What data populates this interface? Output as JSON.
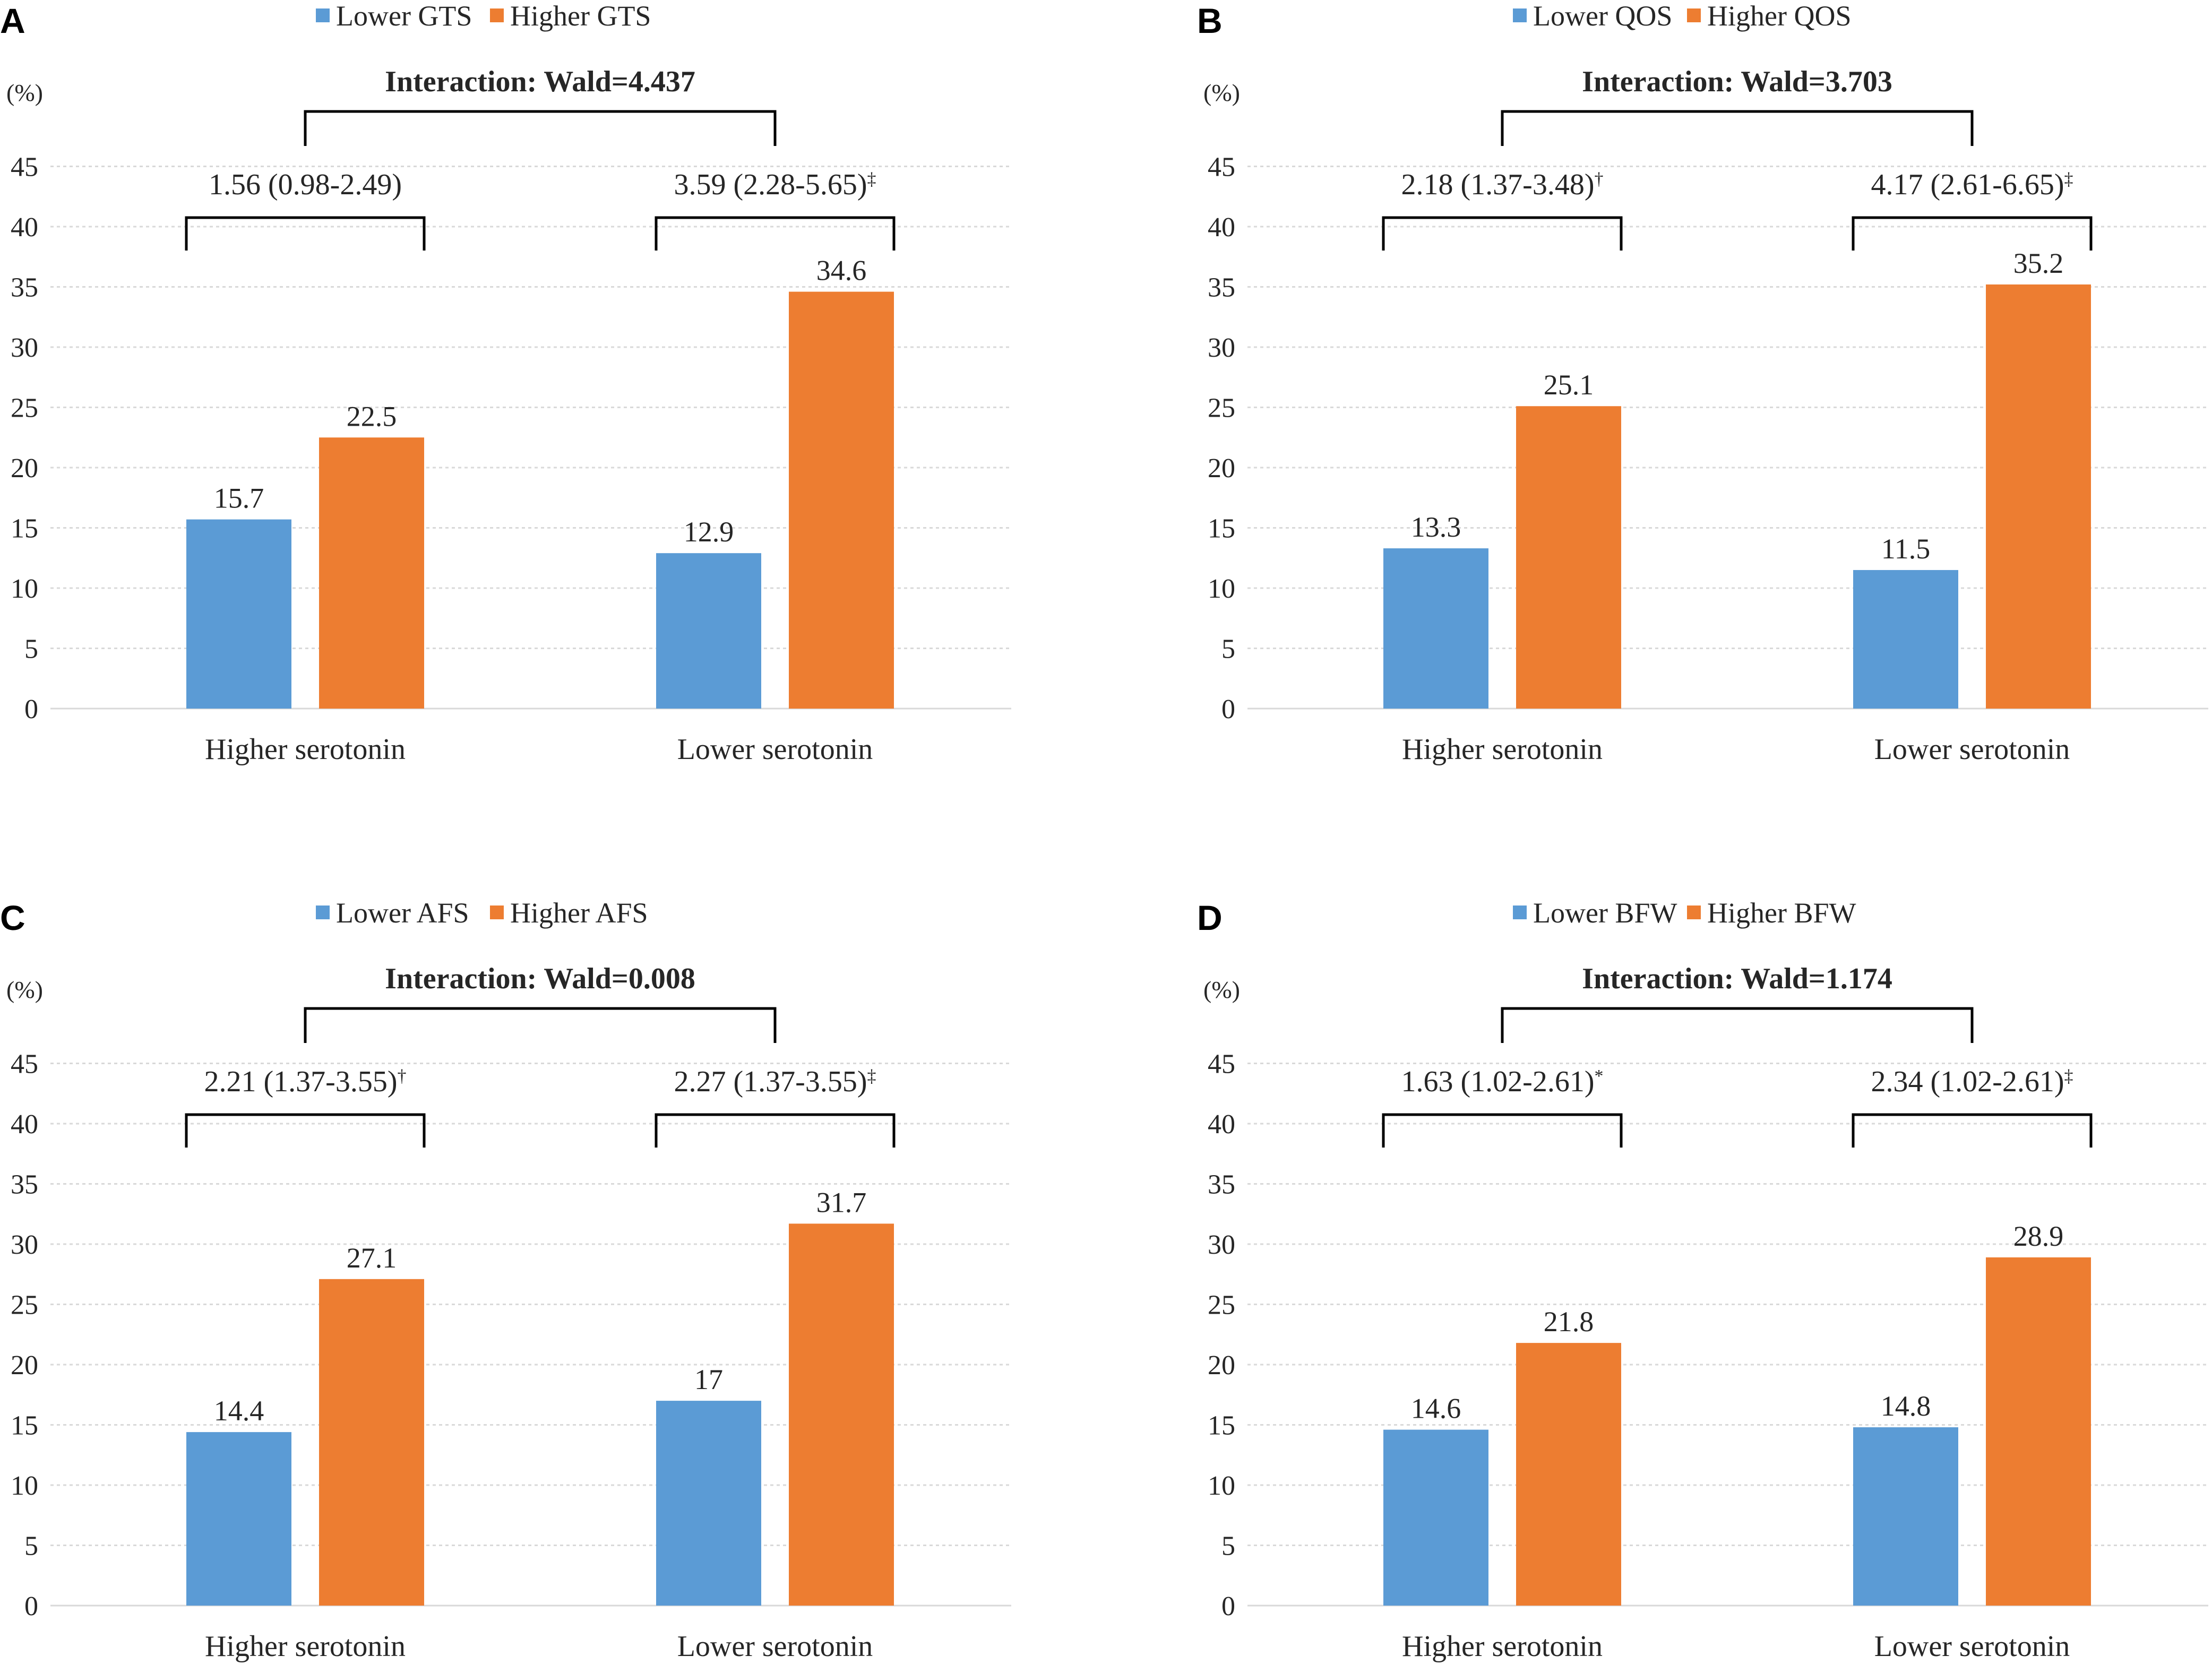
{
  "colors": {
    "lower": "#5B9BD5",
    "higher": "#ED7D31",
    "grid": "#D9D9D9",
    "bracket": "#000000"
  },
  "y_unit": "(%)",
  "chart_data": [
    {
      "panel": "A",
      "type": "bar",
      "categories": [
        "Higher serotonin",
        "Lower serotonin"
      ],
      "series": [
        {
          "name": "Lower GTS",
          "values": [
            15.7,
            12.9
          ]
        },
        {
          "name": "Higher GTS",
          "values": [
            22.5,
            34.6
          ]
        }
      ],
      "value_labels": [
        [
          "15.7",
          "12.9"
        ],
        [
          "22.5",
          "34.6"
        ]
      ],
      "yticks": [
        "0",
        "5",
        "10",
        "15",
        "20",
        "25",
        "30",
        "35",
        "40",
        "45"
      ],
      "ylim": [
        0,
        45
      ],
      "odds_ratios": [
        "1.56 (0.98-2.49)",
        "3.59 (2.28-5.65)"
      ],
      "or_marks": [
        "",
        "‡"
      ],
      "interaction": "Interaction:  Wald=4.437"
    },
    {
      "panel": "B",
      "type": "bar",
      "categories": [
        "Higher serotonin",
        "Lower serotonin"
      ],
      "series": [
        {
          "name": "Lower QOS",
          "values": [
            13.3,
            11.5
          ]
        },
        {
          "name": "Higher QOS",
          "values": [
            25.1,
            35.2
          ]
        }
      ],
      "value_labels": [
        [
          "13.3",
          "11.5"
        ],
        [
          "25.1",
          "35.2"
        ]
      ],
      "yticks": [
        "0",
        "5",
        "10",
        "15",
        "20",
        "25",
        "30",
        "35",
        "40",
        "45"
      ],
      "ylim": [
        0,
        45
      ],
      "odds_ratios": [
        "2.18 (1.37-3.48)",
        "4.17 (2.61-6.65)"
      ],
      "or_marks": [
        "†",
        "‡"
      ],
      "interaction": "Interaction:  Wald=3.703"
    },
    {
      "panel": "C",
      "type": "bar",
      "categories": [
        "Higher serotonin",
        "Lower serotonin"
      ],
      "series": [
        {
          "name": "Lower AFS",
          "values": [
            14.4,
            17
          ]
        },
        {
          "name": "Higher AFS",
          "values": [
            27.1,
            31.7
          ]
        }
      ],
      "value_labels": [
        [
          "14.4",
          "17"
        ],
        [
          "27.1",
          "31.7"
        ]
      ],
      "yticks": [
        "0",
        "5",
        "10",
        "15",
        "20",
        "25",
        "30",
        "35",
        "40",
        "45"
      ],
      "ylim": [
        0,
        45
      ],
      "odds_ratios": [
        "2.21 (1.37-3.55)",
        "2.27 (1.37-3.55)"
      ],
      "or_marks": [
        "†",
        "‡"
      ],
      "interaction": "Interaction:  Wald=0.008"
    },
    {
      "panel": "D",
      "type": "bar",
      "categories": [
        "Higher serotonin",
        "Lower serotonin"
      ],
      "series": [
        {
          "name": "Lower BFW",
          "values": [
            14.6,
            14.8
          ]
        },
        {
          "name": "Higher BFW",
          "values": [
            21.8,
            28.9
          ]
        }
      ],
      "value_labels": [
        [
          "14.6",
          "14.8"
        ],
        [
          "21.8",
          "28.9"
        ]
      ],
      "yticks": [
        "0",
        "5",
        "10",
        "15",
        "20",
        "25",
        "30",
        "35",
        "40",
        "45"
      ],
      "ylim": [
        0,
        45
      ],
      "odds_ratios": [
        "1.63 (1.02-2.61)",
        "2.34 (1.02-2.61)"
      ],
      "or_marks": [
        "*",
        "‡"
      ],
      "interaction": "Interaction:  Wald=1.174"
    }
  ]
}
